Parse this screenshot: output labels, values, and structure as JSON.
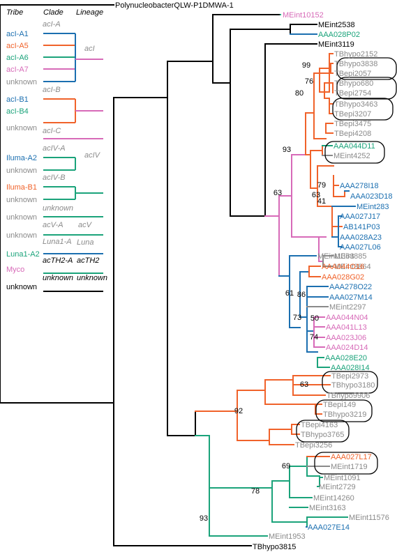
{
  "colors": {
    "black": "#000000",
    "acI_blue": "#1b6fb0",
    "orange": "#f0622a",
    "teal": "#1aa37a",
    "pink": "#d76ab8",
    "grey": "#8a8a8a"
  },
  "legend": {
    "headers": {
      "tribe": "Tribe",
      "clade": "Clade",
      "lineage": "Lineage"
    },
    "rows": [
      {
        "tribe": "acI-A1",
        "color": "#1b6fb0",
        "clade": "acI-A",
        "lineage": "acI"
      },
      {
        "tribe": "acI-A5",
        "color": "#f0622a",
        "clade": "",
        "lineage": ""
      },
      {
        "tribe": "acI-A6",
        "color": "#1aa37a",
        "clade": "",
        "lineage": ""
      },
      {
        "tribe": "acI-A7",
        "color": "#d76ab8",
        "clade": "",
        "lineage": ""
      },
      {
        "tribe": "unknown",
        "color": "#8a8a8a",
        "clade": "",
        "lineage": ""
      },
      {
        "tribe": "acI-B1",
        "color": "#1b6fb0",
        "clade": "acI-B",
        "lineage": ""
      },
      {
        "tribe": "acI-B4",
        "color": "#1aa37a",
        "clade": "",
        "lineage": ""
      },
      {
        "tribe": "unknown",
        "color": "#8a8a8a",
        "clade": "acI-C",
        "lineage": ""
      },
      {
        "tribe": "Iluma-A2",
        "color": "#1b6fb0",
        "clade": "acIV-A",
        "lineage": "acIV"
      },
      {
        "tribe": "unknown",
        "color": "#8a8a8a",
        "clade": "",
        "lineage": ""
      },
      {
        "tribe": "Iluma-B1",
        "color": "#f0622a",
        "clade": "acIV-B",
        "lineage": ""
      },
      {
        "tribe": "unknown",
        "color": "#8a8a8a",
        "clade": "",
        "lineage": ""
      },
      {
        "tribe": "unknown",
        "color": "#8a8a8a",
        "clade": "unknown",
        "lineage": ""
      },
      {
        "tribe": "unknown",
        "color": "#8a8a8a",
        "clade": "acV-A",
        "lineage": "acV"
      },
      {
        "tribe": "Luna1-A2",
        "color": "#1aa37a",
        "clade": "Luna1-A",
        "lineage": "Luna"
      },
      {
        "tribe": "Myco",
        "color": "#d76ab8",
        "clade": "acTH2-A",
        "lineage": "acTH2"
      },
      {
        "tribe": "unknown",
        "color": "#000000",
        "clade": "unknown",
        "lineage": "unknown"
      }
    ]
  },
  "leaves": [
    {
      "label": "PolynucleobacterQLW-P1DMWA-1",
      "color": "#000000"
    },
    {
      "label": "MEint10152",
      "color": "#d76ab8"
    },
    {
      "label": "MEint2538",
      "color": "#000000"
    },
    {
      "label": "AAA028P02",
      "color": "#1aa37a"
    },
    {
      "label": "MEint3119",
      "color": "#000000"
    },
    {
      "label": "TBhypo2152",
      "color": "#8a8a8a"
    },
    {
      "label": "TBhypo3838",
      "color": "#8a8a8a"
    },
    {
      "label": "TBepi2057",
      "color": "#8a8a8a"
    },
    {
      "label": "TBhypo680",
      "color": "#8a8a8a"
    },
    {
      "label": "TBepi2754",
      "color": "#8a8a8a"
    },
    {
      "label": "TBhypo3463",
      "color": "#8a8a8a"
    },
    {
      "label": "TBepi3207",
      "color": "#8a8a8a"
    },
    {
      "label": "TBepi3475",
      "color": "#8a8a8a"
    },
    {
      "label": "TBepi4208",
      "color": "#8a8a8a"
    },
    {
      "label": "AAA044D11",
      "color": "#1aa37a"
    },
    {
      "label": "MEint4252",
      "color": "#8a8a8a"
    },
    {
      "label": "AAA278I18",
      "color": "#1b6fb0"
    },
    {
      "label": "AAA023D18",
      "color": "#1b6fb0"
    },
    {
      "label": "MEint283",
      "color": "#1b6fb0"
    },
    {
      "label": "AAA027J17",
      "color": "#1b6fb0"
    },
    {
      "label": "AB141P03",
      "color": "#1b6fb0"
    },
    {
      "label": "AAA028A23",
      "color": "#1b6fb0"
    },
    {
      "label": "AAA027L06",
      "color": "#1b6fb0"
    },
    {
      "label": "MEint885",
      "color": "#8a8a8a"
    },
    {
      "label": "MEint3864",
      "color": "#8a8a8a"
    },
    {
      "label": "MEint1363",
      "color": "#8a8a8a"
    },
    {
      "label": "AAA044O16",
      "color": "#f0622a"
    },
    {
      "label": "AAA028G02",
      "color": "#f0622a"
    },
    {
      "label": "AAA278O22",
      "color": "#1b6fb0"
    },
    {
      "label": "AAA027M14",
      "color": "#1b6fb0"
    },
    {
      "label": "MEint2297",
      "color": "#8a8a8a"
    },
    {
      "label": "AAA044N04",
      "color": "#d76ab8"
    },
    {
      "label": "AAA041L13",
      "color": "#d76ab8"
    },
    {
      "label": "AAA023J06",
      "color": "#d76ab8"
    },
    {
      "label": "AAA024D14",
      "color": "#d76ab8"
    },
    {
      "label": "AAA028E20",
      "color": "#1aa37a"
    },
    {
      "label": "AAA028I14",
      "color": "#1aa37a"
    },
    {
      "label": "TBepi2973",
      "color": "#8a8a8a"
    },
    {
      "label": "TBhypo3180",
      "color": "#8a8a8a"
    },
    {
      "label": "TBhypo9906",
      "color": "#8a8a8a"
    },
    {
      "label": "TBepi149",
      "color": "#8a8a8a"
    },
    {
      "label": "TBhypo3219",
      "color": "#8a8a8a"
    },
    {
      "label": "TBepi4163",
      "color": "#8a8a8a"
    },
    {
      "label": "TBhypo3765",
      "color": "#8a8a8a"
    },
    {
      "label": "TBepi3256",
      "color": "#8a8a8a"
    },
    {
      "label": "AAA027L17",
      "color": "#f0622a"
    },
    {
      "label": "MEint1719",
      "color": "#8a8a8a"
    },
    {
      "label": "MEint1091",
      "color": "#8a8a8a"
    },
    {
      "label": "MEint2729",
      "color": "#8a8a8a"
    },
    {
      "label": "MEint14260",
      "color": "#8a8a8a"
    },
    {
      "label": "MEint3163",
      "color": "#8a8a8a"
    },
    {
      "label": "MEint11576",
      "color": "#8a8a8a"
    },
    {
      "label": "AAA027E14",
      "color": "#1b6fb0"
    },
    {
      "label": "MEint1953",
      "color": "#8a8a8a"
    },
    {
      "label": "TBhypo3815",
      "color": "#000000"
    }
  ],
  "support_values": [
    "99",
    "76",
    "80",
    "93",
    "79",
    "63",
    "41",
    "63",
    "61",
    "86",
    "50",
    "73",
    "74",
    "63",
    "92",
    "69",
    "78",
    "93"
  ]
}
